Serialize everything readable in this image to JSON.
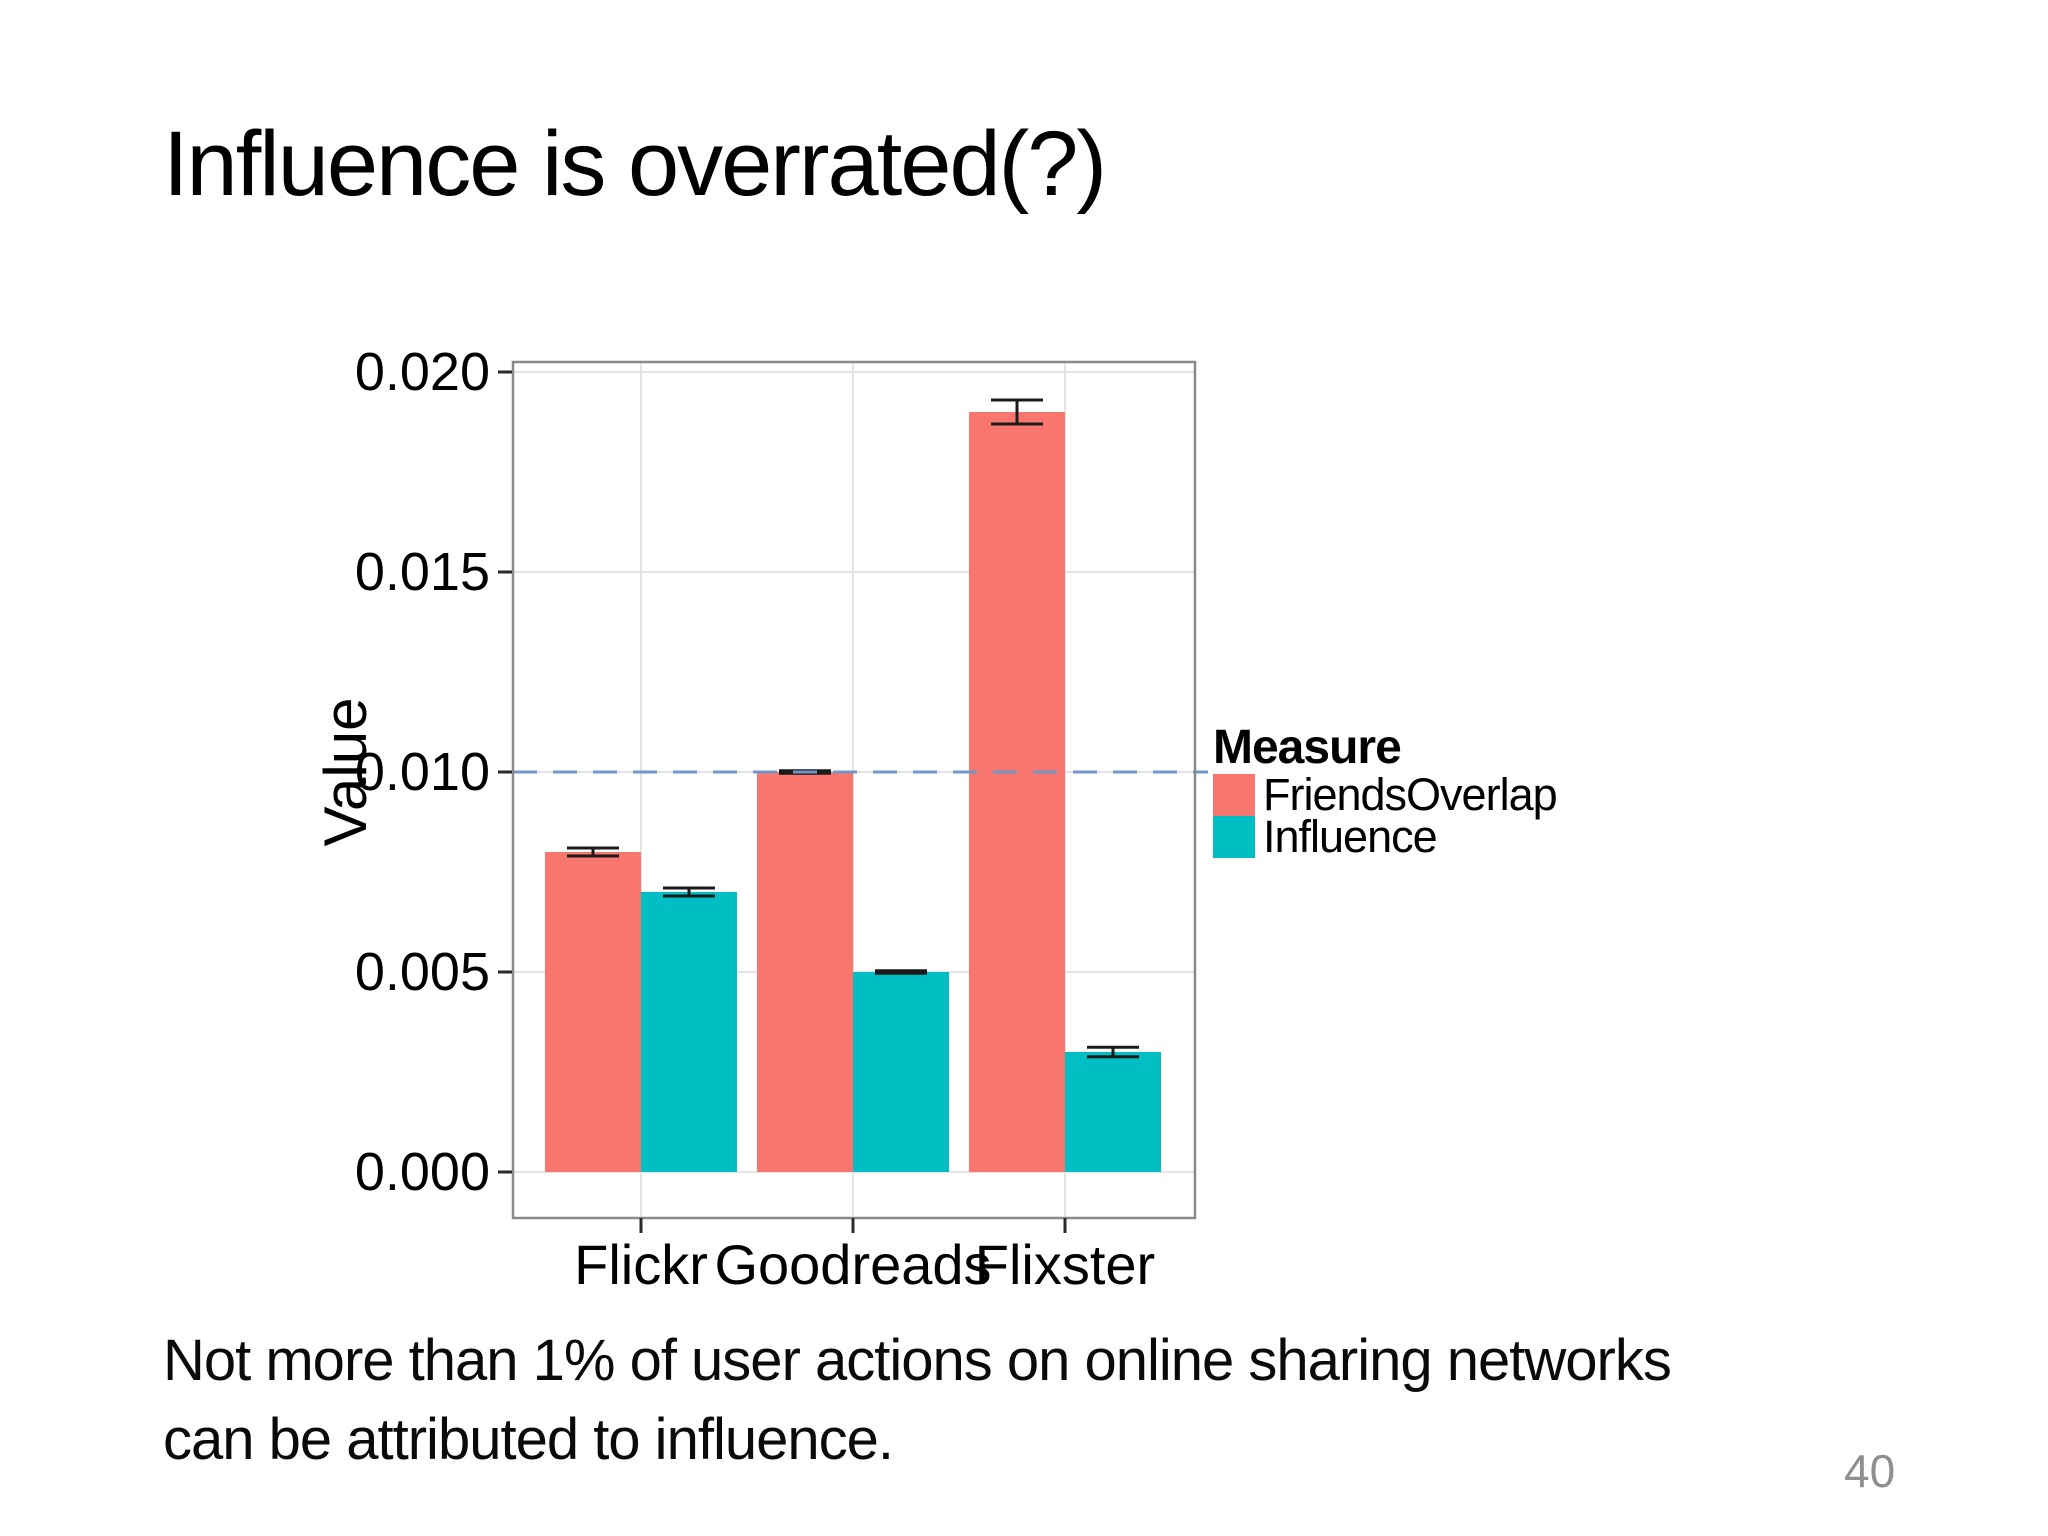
{
  "slide": {
    "title": "Influence is overrated(?)",
    "caption": {
      "line1": "Not more than 1% of user actions on online sharing networks",
      "line2": "can be attributed to influence."
    },
    "page_number": "40"
  },
  "chart_data": {
    "type": "bar",
    "title": "",
    "categories": [
      "Flickr",
      "Goodreads",
      "Flixster"
    ],
    "series": [
      {
        "name": "FriendsOverlap",
        "color": "#F8766D",
        "values": [
          0.008,
          0.01,
          0.019
        ],
        "errors": [
          0.0001,
          3e-05,
          0.0003
        ]
      },
      {
        "name": "Influence",
        "color": "#00BFC4",
        "values": [
          0.007,
          0.005,
          0.003
        ],
        "errors": [
          0.0001,
          3e-05,
          0.00012
        ]
      }
    ],
    "xlabel": "",
    "ylabel": "Value",
    "yticks": [
      0.0,
      0.005,
      0.01,
      0.015,
      0.02
    ],
    "ylim": [
      0,
      0.0202
    ],
    "grid": true,
    "legend": {
      "title": "Measure",
      "position": "right"
    },
    "reference_line": {
      "y": 0.01,
      "style": "dashed",
      "color": "#7296C8"
    },
    "colors": {
      "gridline": "#E4E4E4",
      "panel_border": "#8A8A8A",
      "tick": "#2b2b2b",
      "error_bar": "#1a1a1a",
      "axis_text": "#000000"
    }
  }
}
